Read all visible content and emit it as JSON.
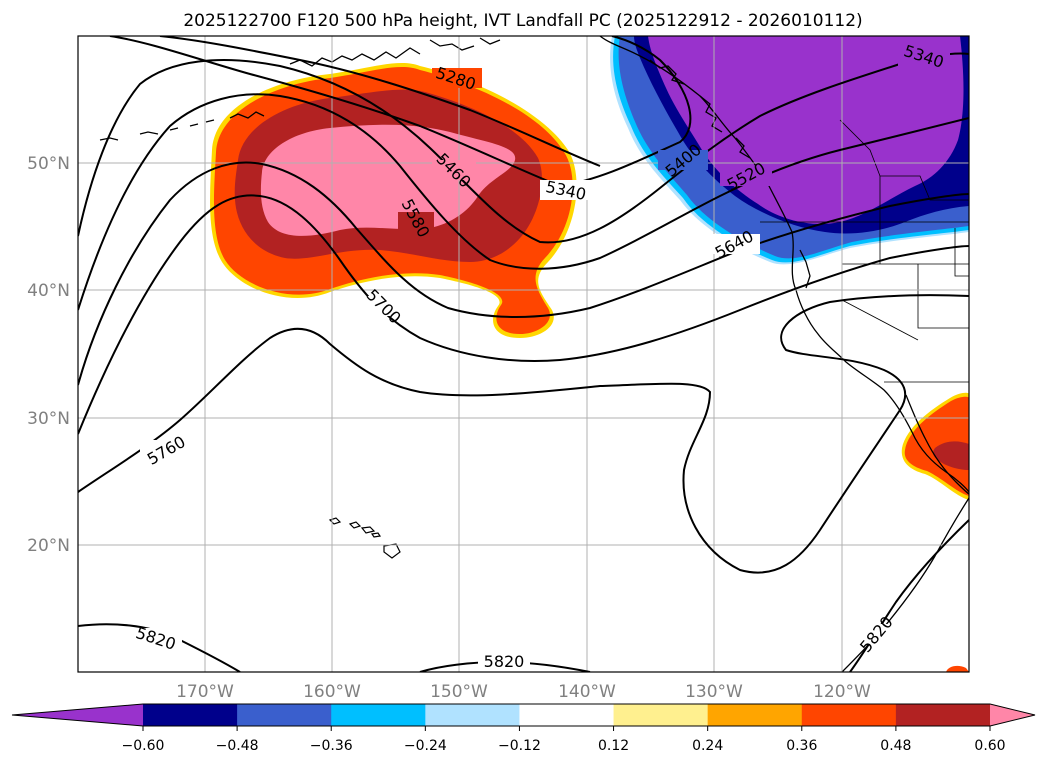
{
  "title": "2025122700 F120 500 hPa height, IVT Landfall PC (2025122912 - 2026010112)",
  "map": {
    "lon_range": [
      -180,
      -110
    ],
    "lat_range": [
      10,
      60
    ],
    "lat_ticks": [
      {
        "value": 50,
        "label": "50°N"
      },
      {
        "value": 40,
        "label": "40°N"
      },
      {
        "value": 30,
        "label": "30°N"
      },
      {
        "value": 20,
        "label": "20°N"
      }
    ],
    "lon_ticks": [
      {
        "value": -170,
        "label": "170°W"
      },
      {
        "value": -160,
        "label": "160°W"
      },
      {
        "value": -150,
        "label": "150°W"
      },
      {
        "value": -140,
        "label": "140°W"
      },
      {
        "value": -130,
        "label": "130°W"
      },
      {
        "value": -120,
        "label": "120°W"
      }
    ],
    "grid": true,
    "contour_variable": "500 hPa height",
    "contour_labels": [
      "5280",
      "5340",
      "5460",
      "5580",
      "5700",
      "5760",
      "5820",
      "5820",
      "5820",
      "5400",
      "5520",
      "5640",
      "5340"
    ],
    "fill_variable": "IVT Landfall PC"
  },
  "colorbar": {
    "orientation": "horizontal",
    "position": "bottom",
    "extend": "both",
    "levels": [
      -0.6,
      -0.48,
      -0.36,
      -0.24,
      -0.12,
      0.12,
      0.24,
      0.36,
      0.48,
      0.6
    ],
    "tick_labels": [
      "−0.60",
      "−0.48",
      "−0.36",
      "−0.24",
      "−0.12",
      "0.12",
      "0.24",
      "0.36",
      "0.48",
      "0.60"
    ],
    "colors": [
      "#9932cc",
      "#00008b",
      "#3a5fcd",
      "#00bfff",
      "#b0e2ff",
      "#ffffff",
      "#fff08f",
      "#ffa500",
      "#ff4500",
      "#b22222",
      "#ff86a8"
    ]
  }
}
